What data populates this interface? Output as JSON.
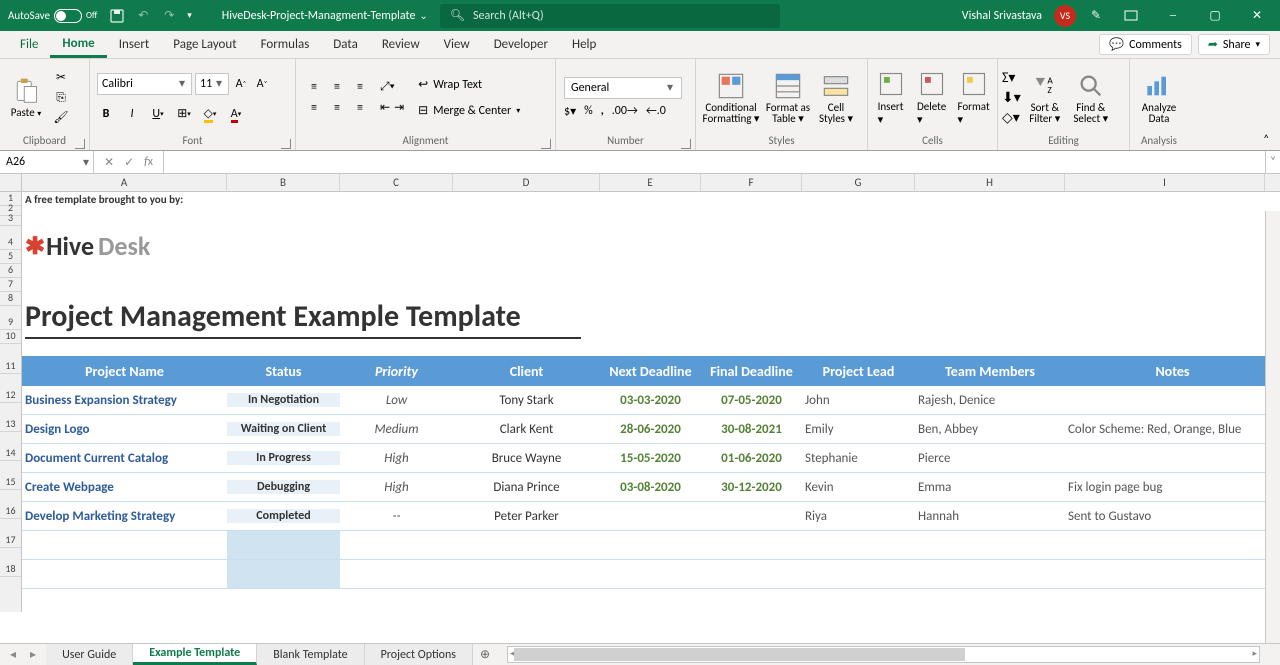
{
  "titlebar": {
    "autosave": "AutoSave",
    "autosave_state": "Off",
    "document": "HiveDesk-Project-Managment-Template",
    "search_placeholder": "Search (Alt+Q)",
    "username": "Vishal Srivastava",
    "initials": "VS"
  },
  "tabs": {
    "file": "File",
    "home": "Home",
    "insert": "Insert",
    "pagelayout": "Page Layout",
    "formulas": "Formulas",
    "data": "Data",
    "review": "Review",
    "view": "View",
    "developer": "Developer",
    "help": "Help",
    "comments": "Comments",
    "share": "Share"
  },
  "ribbon": {
    "clipboard": "Clipboard",
    "paste": "Paste",
    "font": "Font",
    "fontname": "Calibri",
    "fontsize": "11",
    "alignment": "Alignment",
    "wraptext": "Wrap Text",
    "merge": "Merge & Center",
    "number": "Number",
    "numberformat": "General",
    "styles": "Styles",
    "condfmt": "Conditional Formatting",
    "fmttable": "Format as Table",
    "cellstyles": "Cell Styles",
    "cells": "Cells",
    "insert": "Insert",
    "delete": "Delete",
    "format": "Format",
    "editing": "Editing",
    "sortfilter": "Sort & Filter",
    "findselect": "Find & Select",
    "analysis": "Analysis",
    "analyze": "Analyze Data"
  },
  "namebox": "A26",
  "intro_text": "A free template brought to you by:",
  "logo": {
    "brand1": "Hive",
    "brand2": "Desk"
  },
  "sheet_title": "Project Management Example Template",
  "columns": {
    "widths": [
      205,
      113,
      113,
      147,
      101,
      101,
      113,
      150,
      195
    ],
    "col_letters": [
      "A",
      "B",
      "C",
      "D",
      "E",
      "F",
      "G",
      "H",
      "I"
    ],
    "headers": [
      "Project Name",
      "Status",
      "Priority",
      "Client",
      "Next Deadline",
      "Final Deadline",
      "Project Lead",
      "Team Members",
      "Notes"
    ],
    "priority_italic": "Priority"
  },
  "row_heights": {
    "r1": 14,
    "r2": 10,
    "r3": 10,
    "r4": 24,
    "r5": 14,
    "r6": 14,
    "r7": 14,
    "r8": 14,
    "r9": 24,
    "r10": 14,
    "r11": 30,
    "r12_16": 29,
    "r17_18": 29
  },
  "rows": [
    {
      "pn": "Business Expansion Strategy",
      "st": "In Negotiation",
      "pr": "Low",
      "cl": "Tony Stark",
      "nd": "03-03-2020",
      "fd": "07-05-2020",
      "pl": "John",
      "tm": "Rajesh, Denice",
      "nt": ""
    },
    {
      "pn": "Design Logo",
      "st": "Waiting on Client",
      "pr": "Medium",
      "cl": "Clark Kent",
      "nd": "28-06-2020",
      "fd": "30-08-2021",
      "pl": "Emily",
      "tm": "Ben, Abbey",
      "nt": "Color Scheme: Red, Orange, Blue"
    },
    {
      "pn": "Document Current Catalog",
      "st": "In Progress",
      "pr": "High",
      "cl": "Bruce Wayne",
      "nd": "15-05-2020",
      "fd": "01-06-2020",
      "pl": "Stephanie",
      "tm": "Pierce",
      "nt": ""
    },
    {
      "pn": "Create Webpage",
      "st": "Debugging",
      "pr": "High",
      "cl": "Diana Prince",
      "nd": "03-08-2020",
      "fd": "30-12-2020",
      "pl": "Kevin",
      "tm": "Emma",
      "nt": "Fix login page bug"
    },
    {
      "pn": "Develop Marketing Strategy",
      "st": "Completed",
      "pr": "--",
      "cl": "Peter Parker",
      "nd": "",
      "fd": "",
      "pl": "Riya",
      "tm": "Hannah",
      "nt": "Sent to Gustavo"
    }
  ],
  "sheets": {
    "s1": "User Guide",
    "s2": "Example Template",
    "s3": "Blank Template",
    "s4": "Project Options"
  },
  "colors": {
    "ribbon_green": "#0f7b4d",
    "table_header": "#5b9bd5",
    "link_blue": "#2e5c9a",
    "date_green": "#548235"
  }
}
